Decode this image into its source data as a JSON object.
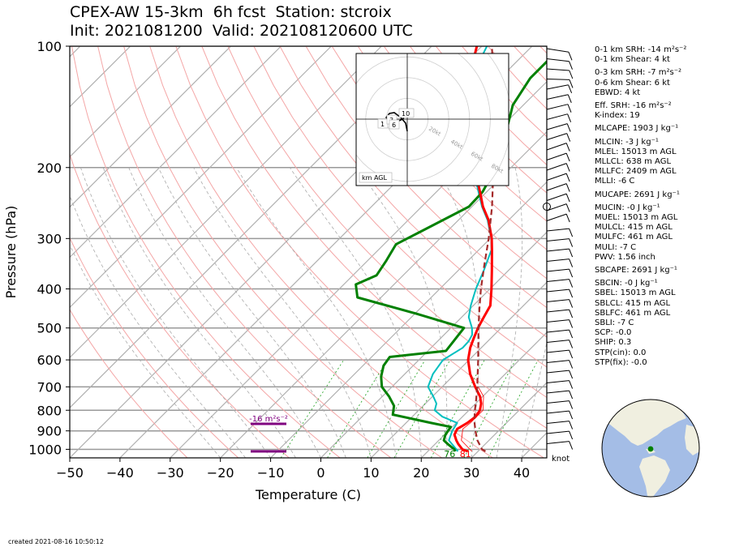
{
  "title": {
    "line1": "CPEX-AW 15-3km  6h fcst  Station: stcroix",
    "line2": "Init: 2021081200  Valid: 202108120600 UTC"
  },
  "created": "created 2021-08-16 10:50:12",
  "colors": {
    "temperature": "#ff0000",
    "dewpoint": "#008000",
    "wetbulb": "#00bfbf",
    "parcel": "#a52a2a",
    "srh_bar": "#800080",
    "dry_adiabat": "#f4a6a6",
    "moist_adiabat": "#aaaaaa",
    "mixing_ratio": "#33aa33",
    "globe_ocean": "#a4bde6",
    "globe_land": "#f0efe0",
    "station_marker": "#008000"
  },
  "chart_data": {
    "type": "line",
    "chart_kind": "skew-T log-P sounding",
    "xlabel": "Temperature (C)",
    "ylabel": "Pressure (hPa)",
    "x_ticks": [
      "−50",
      "−40",
      "−30",
      "−20",
      "−10",
      "0",
      "10",
      "20",
      "30",
      "40"
    ],
    "x_tick_values": [
      -50,
      -40,
      -30,
      -20,
      -10,
      0,
      10,
      20,
      30,
      40
    ],
    "xlim": [
      -50,
      45
    ],
    "y_scale": "log",
    "y_ticks": [
      "100",
      "200",
      "300",
      "400",
      "500",
      "600",
      "700",
      "800",
      "900",
      "1000"
    ],
    "y_tick_values": [
      100,
      200,
      300,
      400,
      500,
      600,
      700,
      800,
      900,
      1000
    ],
    "ylim": [
      1050,
      100
    ],
    "grid": true,
    "series": [
      {
        "key": "temperature",
        "points": [
          [
            1012,
            28
          ],
          [
            1000,
            26.5
          ],
          [
            970,
            24.6
          ],
          [
            950,
            23.5
          ],
          [
            920,
            22
          ],
          [
            890,
            21.4
          ],
          [
            860,
            22.2
          ],
          [
            830,
            22.6
          ],
          [
            800,
            22.2
          ],
          [
            770,
            21.1
          ],
          [
            740,
            19.5
          ],
          [
            700,
            16.6
          ],
          [
            650,
            13
          ],
          [
            600,
            9.8
          ],
          [
            560,
            7.8
          ],
          [
            530,
            6.6
          ],
          [
            500,
            5.4
          ],
          [
            470,
            4.4
          ],
          [
            440,
            3.4
          ],
          [
            400,
            0.3
          ],
          [
            360,
            -3.3
          ],
          [
            320,
            -7.4
          ],
          [
            300,
            -9.7
          ],
          [
            270,
            -14
          ],
          [
            250,
            -17.8
          ],
          [
            230,
            -21.3
          ],
          [
            210,
            -25.2
          ],
          [
            190,
            -29.4
          ],
          [
            170,
            -33.8
          ],
          [
            150,
            -38.5
          ],
          [
            140,
            -41
          ],
          [
            130,
            -43.5
          ],
          [
            120,
            -46
          ],
          [
            110,
            -48.5
          ],
          [
            100,
            -51
          ]
        ]
      },
      {
        "key": "dewpoint",
        "points": [
          [
            1012,
            25.5
          ],
          [
            1000,
            24.9
          ],
          [
            970,
            22.5
          ],
          [
            950,
            21
          ],
          [
            920,
            20.2
          ],
          [
            880,
            19.7
          ],
          [
            860,
            15
          ],
          [
            820,
            5.7
          ],
          [
            780,
            4.2
          ],
          [
            740,
            1.4
          ],
          [
            700,
            -2
          ],
          [
            660,
            -4.2
          ],
          [
            620,
            -5.9
          ],
          [
            590,
            -6.4
          ],
          [
            570,
            3.6
          ],
          [
            540,
            3.2
          ],
          [
            500,
            2.6
          ],
          [
            460,
            -10
          ],
          [
            420,
            -24.7
          ],
          [
            390,
            -27.6
          ],
          [
            370,
            -25.3
          ],
          [
            340,
            -26.3
          ],
          [
            310,
            -27.6
          ],
          [
            290,
            -25.4
          ],
          [
            250,
            -20.6
          ],
          [
            230,
            -20.8
          ],
          [
            200,
            -23
          ],
          [
            180,
            -27.8
          ],
          [
            160,
            -28.6
          ],
          [
            140,
            -32.1
          ],
          [
            120,
            -34
          ],
          [
            100,
            -34
          ]
        ]
      },
      {
        "key": "wetbulb",
        "points": [
          [
            1012,
            26
          ],
          [
            1000,
            25.3
          ],
          [
            950,
            22
          ],
          [
            900,
            20.8
          ],
          [
            860,
            20.2
          ],
          [
            830,
            16
          ],
          [
            800,
            13.2
          ],
          [
            770,
            12.2
          ],
          [
            740,
            10.2
          ],
          [
            700,
            7.2
          ],
          [
            650,
            5.6
          ],
          [
            600,
            4.8
          ],
          [
            560,
            6.3
          ],
          [
            540,
            6.2
          ],
          [
            520,
            5.6
          ],
          [
            500,
            4.2
          ],
          [
            470,
            1.4
          ],
          [
            440,
            -0.5
          ],
          [
            400,
            -2.8
          ],
          [
            360,
            -4.9
          ],
          [
            320,
            -7.5
          ],
          [
            300,
            -9.8
          ],
          [
            270,
            -14.2
          ],
          [
            250,
            -18
          ],
          [
            230,
            -21.6
          ],
          [
            210,
            -25.5
          ],
          [
            190,
            -29.6
          ],
          [
            170,
            -34
          ],
          [
            150,
            -38.6
          ],
          [
            130,
            -43.7
          ],
          [
            120,
            -45.2
          ],
          [
            110,
            -47.3
          ],
          [
            100,
            -49
          ]
        ]
      },
      {
        "key": "parcel",
        "points": [
          [
            1012,
            31.5
          ],
          [
            1000,
            30.4
          ],
          [
            950,
            27.7
          ],
          [
            900,
            25.4
          ],
          [
            850,
            23.2
          ],
          [
            800,
            21.2
          ],
          [
            750,
            19.2
          ],
          [
            700,
            17
          ],
          [
            650,
            14.5
          ],
          [
            600,
            11.8
          ],
          [
            550,
            8.8
          ],
          [
            500,
            5.5
          ],
          [
            450,
            2
          ],
          [
            400,
            -1.8
          ],
          [
            350,
            -5.8
          ],
          [
            300,
            -10.3
          ],
          [
            250,
            -16
          ],
          [
            200,
            -23.5
          ],
          [
            150,
            -33.3
          ],
          [
            120,
            -41.4
          ],
          [
            100,
            -48
          ]
        ]
      }
    ],
    "srh_label": "-16 m²s⁻²",
    "surface_t_label": "81",
    "surface_td_label": "76",
    "barb_units": "knot",
    "hodograph": {
      "ring_labels": [
        "20kt",
        "40kt",
        "60kt",
        "80kt"
      ],
      "height_labels": [
        "1",
        "3",
        "6",
        "10"
      ],
      "note": "km AGL"
    }
  },
  "stats": [
    {
      "text": "0-1 km SRH: -14 m²s⁻²",
      "gap": false
    },
    {
      "text": "0-1 km Shear: 4 kt",
      "gap": false
    },
    {
      "text": "0-3 km SRH: -7 m²s⁻²",
      "gap": true
    },
    {
      "text": "0-6 km Shear: 6 kt",
      "gap": false
    },
    {
      "text": "EBWD: 4 kt",
      "gap": false
    },
    {
      "text": "Eff. SRH: -16 m²s⁻²",
      "gap": true
    },
    {
      "text": "K-index: 19",
      "gap": false
    },
    {
      "text": "MLCAPE: 1903 J kg⁻¹",
      "gap": true
    },
    {
      "text": "MLCIN: -3 J kg⁻¹",
      "gap": true
    },
    {
      "text": "MLEL: 15013 m AGL",
      "gap": false
    },
    {
      "text": "MLLCL: 638 m AGL",
      "gap": false
    },
    {
      "text": "MLLFC: 2409 m AGL",
      "gap": false
    },
    {
      "text": "MLLI: -6 C",
      "gap": false
    },
    {
      "text": "MUCAPE: 2691 J kg⁻¹",
      "gap": true
    },
    {
      "text": "MUCIN: -0 J kg⁻¹",
      "gap": true
    },
    {
      "text": "MUEL: 15013 m AGL",
      "gap": false
    },
    {
      "text": "MULCL: 415 m AGL",
      "gap": false
    },
    {
      "text": "MULFC: 461 m AGL",
      "gap": false
    },
    {
      "text": "MULI: -7 C",
      "gap": false
    },
    {
      "text": "PWV: 1.56 inch",
      "gap": false
    },
    {
      "text": "SBCAPE: 2691 J kg⁻¹",
      "gap": true
    },
    {
      "text": "SBCIN: -0 J kg⁻¹",
      "gap": true
    },
    {
      "text": "SBEL: 15013 m AGL",
      "gap": false
    },
    {
      "text": "SBLCL: 415 m AGL",
      "gap": false
    },
    {
      "text": "SBLFC: 461 m AGL",
      "gap": false
    },
    {
      "text": "SBLI: -7 C",
      "gap": false
    },
    {
      "text": "SCP: -0.0",
      "gap": false
    },
    {
      "text": "SHIP: 0.3",
      "gap": false
    },
    {
      "text": "STP(cin): 0.0",
      "gap": false
    },
    {
      "text": "STP(fix): -0.0",
      "gap": false
    }
  ]
}
